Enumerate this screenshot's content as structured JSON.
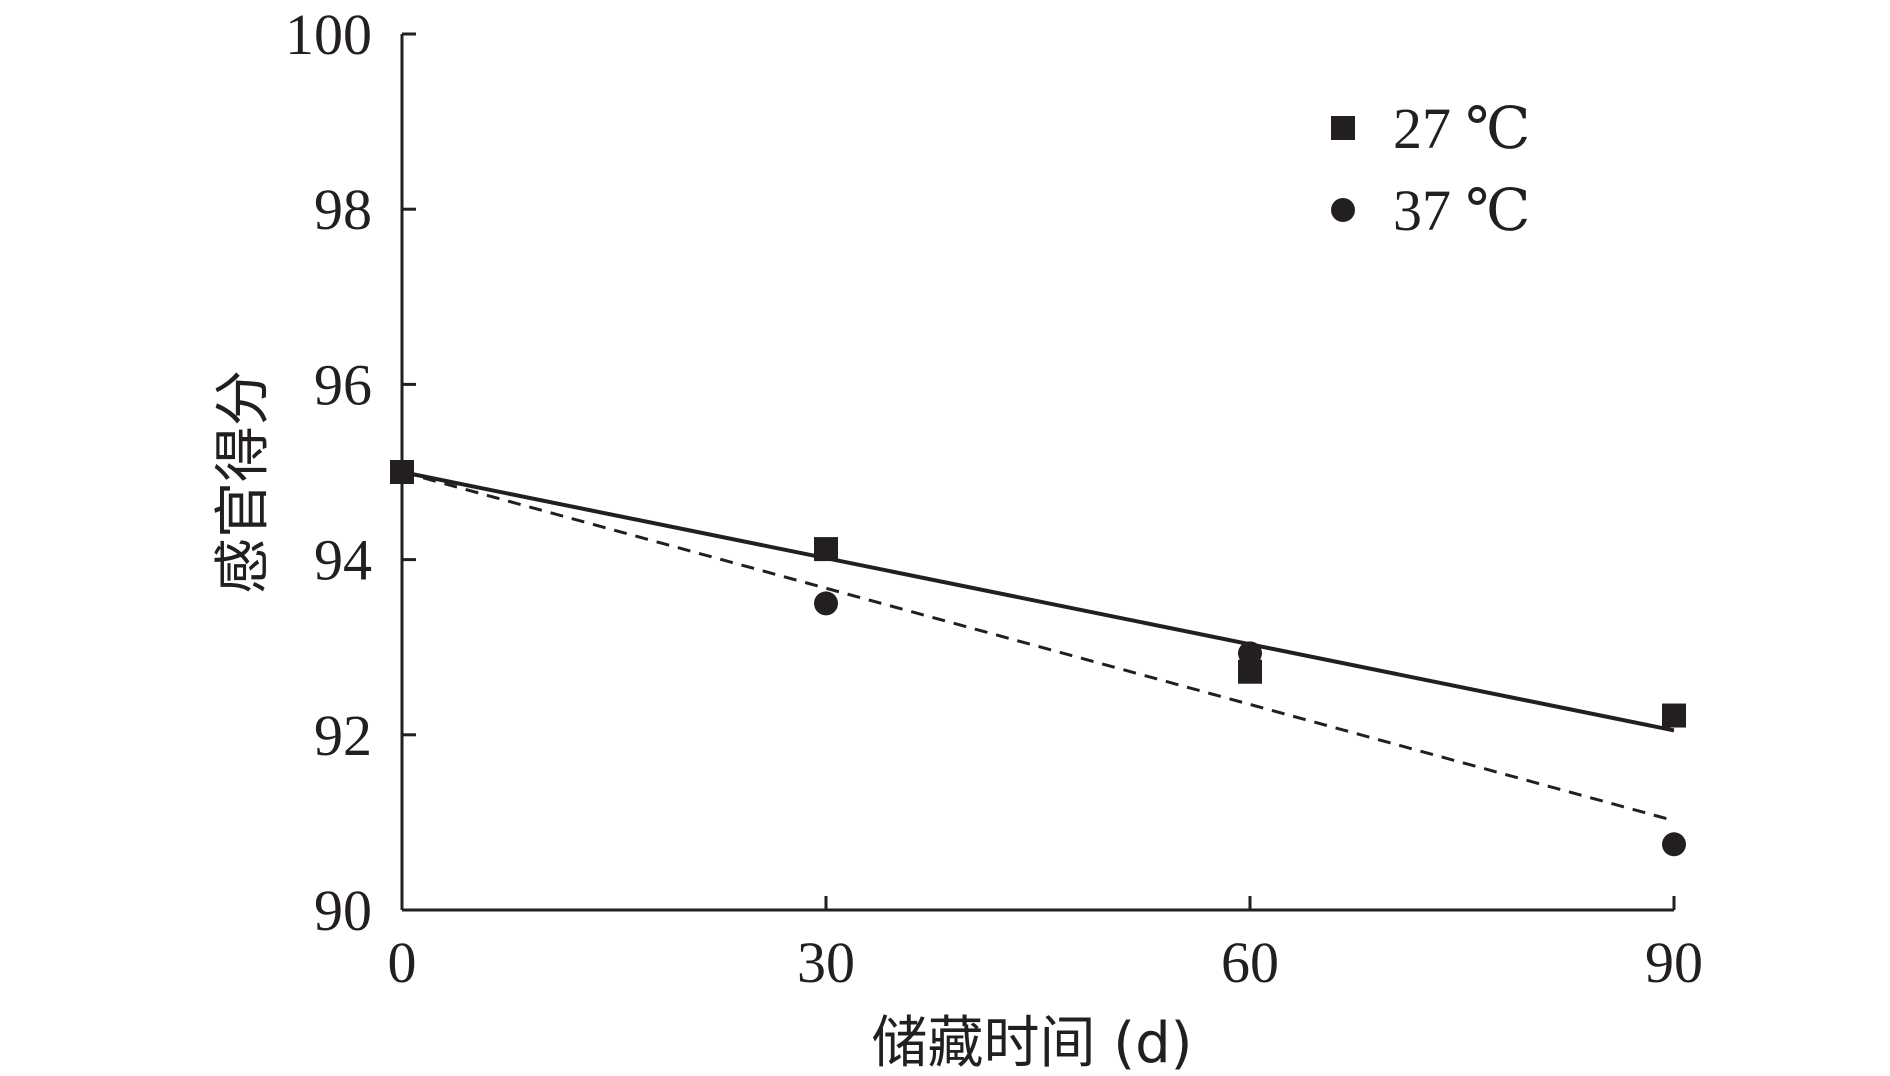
{
  "chart_data": {
    "type": "scatter",
    "title": "",
    "xlabel": "储藏时间 (d)",
    "ylabel": "感官得分",
    "xlim": [
      0,
      90
    ],
    "ylim": [
      90,
      100
    ],
    "xticks": [
      0,
      30,
      60,
      90
    ],
    "yticks": [
      90,
      92,
      94,
      96,
      98,
      100
    ],
    "grid": false,
    "legend_position": "top-right",
    "colors": {
      "ink": "#231f20"
    },
    "series": [
      {
        "name": "27 ℃",
        "marker": "square",
        "x": [
          0,
          30,
          60,
          90
        ],
        "y": [
          95.0,
          94.12,
          92.72,
          92.22
        ],
        "fit": {
          "style": "solid",
          "x": [
            0,
            90
          ],
          "y": [
            95.0,
            92.05
          ]
        }
      },
      {
        "name": "37 ℃",
        "marker": "circle",
        "x": [
          0,
          30,
          60,
          90
        ],
        "y": [
          95.0,
          93.5,
          92.93,
          90.75
        ],
        "fit": {
          "style": "dashed",
          "x": [
            0,
            90
          ],
          "y": [
            95.0,
            91.02
          ]
        }
      }
    ]
  }
}
